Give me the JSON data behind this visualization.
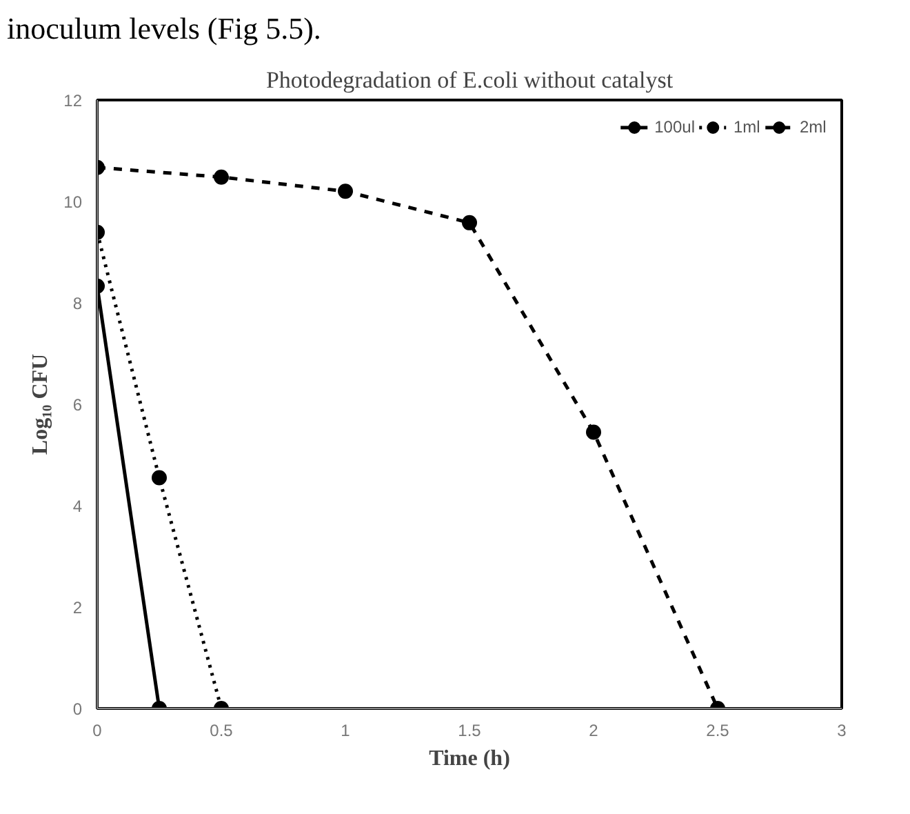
{
  "chart_data": {
    "type": "line",
    "title": "Photodegradation of E.coli without catalyst",
    "xlabel": "Time (h)",
    "ylabel": "Log₁₀ CFU",
    "annotations": [
      "inoculum levels (Fig 5.5)."
    ],
    "xlim": [
      0,
      3
    ],
    "xticks": [
      0,
      0.5,
      1,
      1.5,
      2,
      2.5,
      3
    ],
    "ylim": [
      0,
      12
    ],
    "yticks": [
      0,
      2,
      4,
      6,
      8,
      10,
      12
    ],
    "grid": false,
    "legend": "top right",
    "marker": "circle",
    "series": [
      {
        "name": "100ul",
        "color": "#000000",
        "line_style": "solid",
        "x": [
          0,
          0.25
        ],
        "values": [
          8.33,
          0
        ]
      },
      {
        "name": "1ml",
        "color": "#000000",
        "line_style": "dotted",
        "x": [
          0,
          0.25,
          0.5
        ],
        "values": [
          9.39,
          4.55,
          0
        ]
      },
      {
        "name": "2ml",
        "color": "#000000",
        "line_style": "dashed",
        "x": [
          0,
          0.5,
          1,
          1.5,
          2,
          2.5
        ],
        "values": [
          10.67,
          10.48,
          10.2,
          9.58,
          5.45,
          0
        ]
      }
    ]
  }
}
